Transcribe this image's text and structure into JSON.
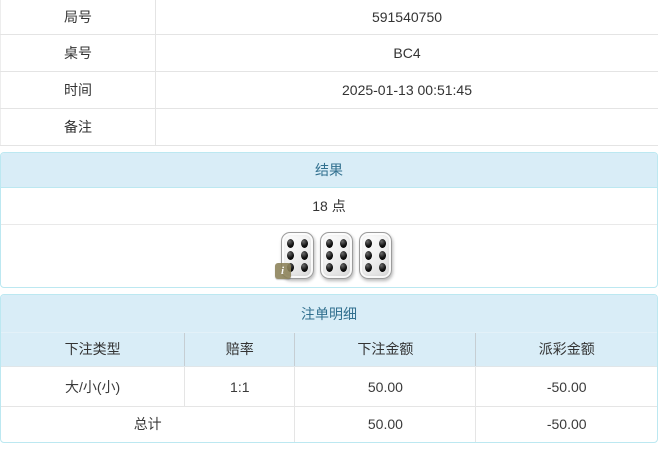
{
  "info_table": {
    "rows": [
      {
        "label": "局号",
        "value": "591540750"
      },
      {
        "label": "桌号",
        "value": "BC4"
      },
      {
        "label": "时间",
        "value": "2025-01-13 00:51:45"
      },
      {
        "label": "备注",
        "value": ""
      }
    ]
  },
  "result_panel": {
    "title": "结果",
    "points": "18 点",
    "dice": [
      6,
      6,
      6
    ],
    "info_badge": "i"
  },
  "bets_panel": {
    "title": "注单明细",
    "columns": [
      "下注类型",
      "赔率",
      "下注金额",
      "派彩金额"
    ],
    "rows": [
      {
        "type": "大/小(小)",
        "odds": "1:1",
        "bet": "50.00",
        "payout": "-50.00"
      }
    ],
    "total": {
      "label": "总计",
      "bet": "50.00",
      "payout": "-50.00"
    }
  },
  "colors": {
    "panel_header_bg": "#d9edf7",
    "panel_header_text": "#31708f",
    "panel_border": "#bce8f1",
    "table_border": "#e4e4e4",
    "negative_text": "#e24b4b",
    "body_text": "#333333"
  }
}
